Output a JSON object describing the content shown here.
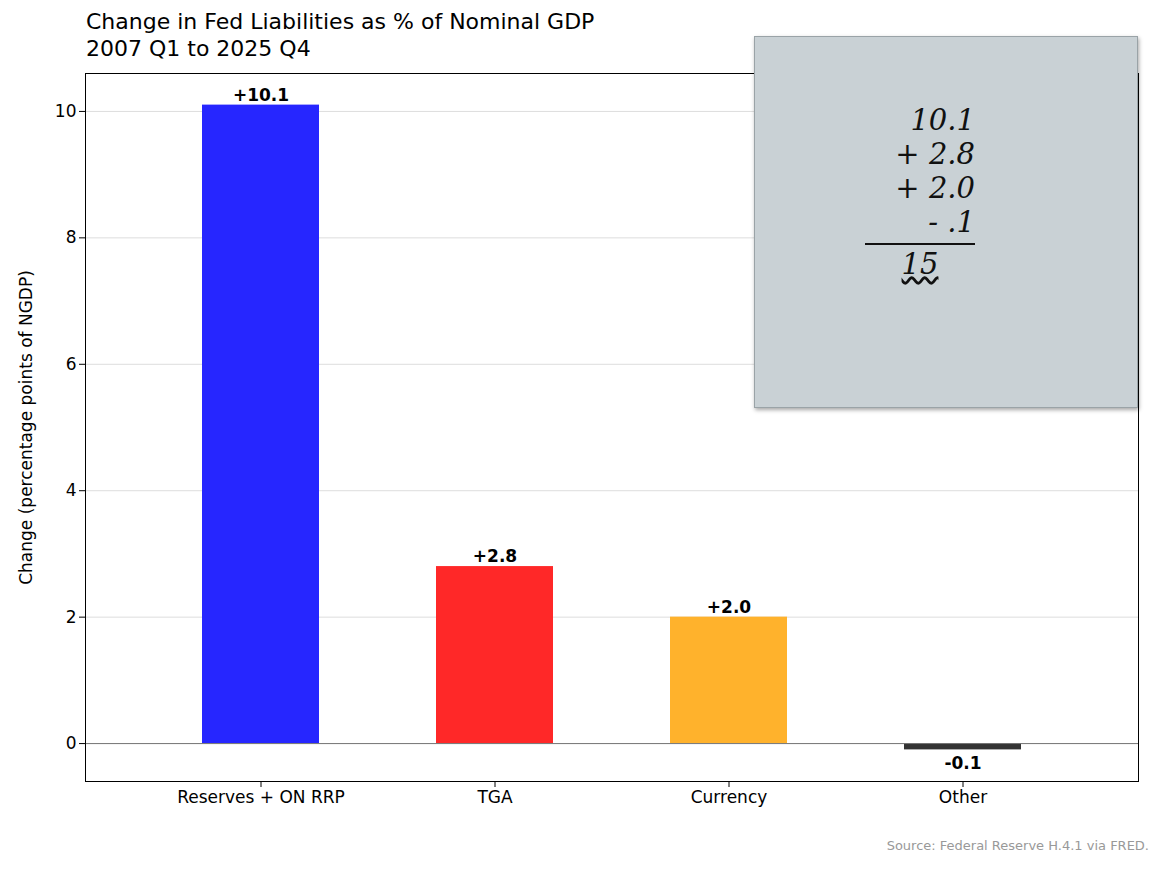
{
  "chart_data": {
    "type": "bar",
    "title": "Change in Fed Liabilities as % of Nominal GDP",
    "subtitle": "2007 Q1 to 2025 Q4",
    "y_label": "Change (percentage points of NGDP)",
    "caption": "Source: Federal Reserve H.4.1 via FRED.",
    "categories": [
      "Reserves + ON RRP",
      "TGA",
      "Currency",
      "Other"
    ],
    "values": [
      10.1,
      2.8,
      2.0,
      -0.1
    ],
    "value_labels": [
      "+10.1",
      "+2.8",
      "+2.0",
      "-0.1"
    ],
    "colors": [
      "#2626ff",
      "#ff2828",
      "#ffb22c",
      "#333333"
    ],
    "data_labels": true,
    "ylim": [
      -0.6,
      10.6
    ],
    "yticks": [
      0,
      2,
      4,
      6,
      8,
      10
    ],
    "grid": true,
    "annotations": [
      "10.1",
      "+ 2.8",
      "+ 2.0",
      "- .1",
      "15"
    ]
  }
}
